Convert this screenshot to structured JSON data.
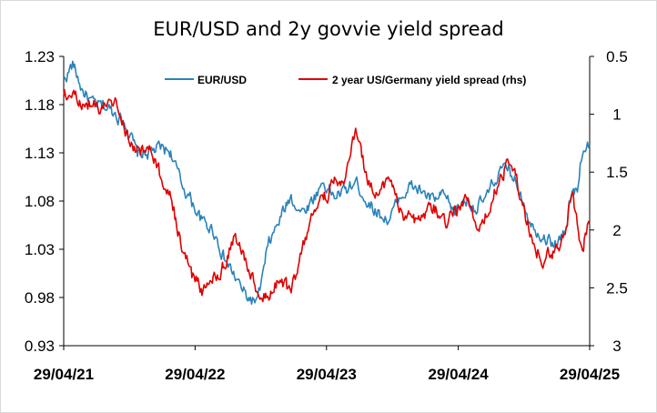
{
  "chart_data": {
    "type": "line",
    "title": "EUR/USD and 2y govvie yield spread",
    "x_ticks": [
      "29/04/21",
      "29/04/22",
      "29/04/23",
      "29/04/24",
      "29/04/25"
    ],
    "y_left": {
      "ylim": [
        0.93,
        1.23
      ],
      "ticks": [
        "1.23",
        "1.18",
        "1.13",
        "1.08",
        "1.03",
        "0.98",
        "0.93"
      ]
    },
    "y_right": {
      "ylim": [
        3,
        0.5
      ],
      "inverted": true,
      "ticks": [
        "0.5",
        "1",
        "1.5",
        "2",
        "2.5",
        "3"
      ]
    },
    "legend_position": "top",
    "series": [
      {
        "name": "EUR/USD",
        "axis": "left",
        "color": "#2a83b9",
        "x": [
          "2021-04-29",
          "2021-05-25",
          "2021-06-20",
          "2021-07-20",
          "2021-08-20",
          "2021-09-20",
          "2021-10-20",
          "2021-11-20",
          "2021-12-20",
          "2022-01-20",
          "2022-02-20",
          "2022-03-20",
          "2022-04-20",
          "2022-05-20",
          "2022-06-20",
          "2022-07-20",
          "2022-08-20",
          "2022-09-20",
          "2022-10-20",
          "2022-11-20",
          "2022-12-20",
          "2023-01-20",
          "2023-02-20",
          "2023-03-20",
          "2023-04-20",
          "2023-05-20",
          "2023-06-20",
          "2023-07-20",
          "2023-08-20",
          "2023-09-20",
          "2023-10-20",
          "2023-11-20",
          "2023-12-20",
          "2024-01-20",
          "2024-02-20",
          "2024-03-20",
          "2024-04-20",
          "2024-05-20",
          "2024-06-20",
          "2024-07-20",
          "2024-08-20",
          "2024-09-20",
          "2024-10-20",
          "2024-11-20",
          "2024-12-20",
          "2025-01-20",
          "2025-02-20",
          "2025-03-10",
          "2025-03-25",
          "2025-04-10",
          "2025-04-29"
        ],
        "values": [
          1.205,
          1.222,
          1.195,
          1.18,
          1.178,
          1.172,
          1.16,
          1.128,
          1.13,
          1.135,
          1.132,
          1.1,
          1.08,
          1.058,
          1.05,
          1.02,
          1.0,
          0.98,
          0.975,
          1.035,
          1.06,
          1.085,
          1.068,
          1.08,
          1.1,
          1.085,
          1.09,
          1.1,
          1.08,
          1.068,
          1.06,
          1.085,
          1.095,
          1.09,
          1.08,
          1.085,
          1.068,
          1.083,
          1.072,
          1.085,
          1.11,
          1.112,
          1.09,
          1.055,
          1.045,
          1.035,
          1.045,
          1.088,
          1.09,
          1.135,
          1.14
        ]
      },
      {
        "name": "2 year US/Germany yield spread (rhs)",
        "axis": "right",
        "color": "#e00000",
        "x": [
          "2021-04-29",
          "2021-05-25",
          "2021-06-20",
          "2021-07-20",
          "2021-08-20",
          "2021-09-20",
          "2021-10-20",
          "2021-11-20",
          "2021-12-20",
          "2022-01-20",
          "2022-02-20",
          "2022-03-20",
          "2022-04-20",
          "2022-05-20",
          "2022-06-20",
          "2022-07-20",
          "2022-08-20",
          "2022-09-20",
          "2022-10-20",
          "2022-11-20",
          "2022-12-20",
          "2023-01-20",
          "2023-02-20",
          "2023-03-20",
          "2023-04-20",
          "2023-05-20",
          "2023-06-20",
          "2023-07-20",
          "2023-08-20",
          "2023-09-20",
          "2023-10-20",
          "2023-11-20",
          "2023-12-20",
          "2024-01-20",
          "2024-02-20",
          "2024-03-20",
          "2024-04-20",
          "2024-05-20",
          "2024-06-20",
          "2024-07-20",
          "2024-08-20",
          "2024-09-20",
          "2024-10-20",
          "2024-11-20",
          "2024-12-20",
          "2025-01-20",
          "2025-02-20",
          "2025-03-10",
          "2025-03-25",
          "2025-04-10",
          "2025-04-29"
        ],
        "values": [
          0.82,
          0.85,
          0.88,
          0.92,
          0.95,
          0.92,
          1.15,
          1.32,
          1.3,
          1.5,
          1.7,
          2.1,
          2.4,
          2.52,
          2.4,
          2.3,
          2.05,
          2.28,
          2.52,
          2.6,
          2.4,
          2.55,
          2.2,
          1.9,
          1.75,
          1.6,
          1.55,
          1.1,
          1.58,
          1.65,
          1.55,
          1.85,
          1.92,
          1.9,
          1.8,
          1.95,
          1.82,
          1.75,
          1.95,
          1.85,
          1.6,
          1.4,
          1.7,
          2.05,
          2.25,
          2.2,
          2.05,
          1.65,
          1.95,
          2.15,
          1.9
        ]
      }
    ]
  }
}
